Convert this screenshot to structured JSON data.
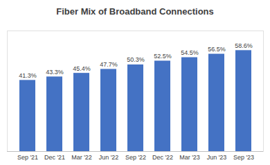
{
  "chart_data": {
    "type": "bar",
    "title": "Fiber Mix of Broadband Connections",
    "categories": [
      "Sep '21",
      "Dec '21",
      "Mar '22",
      "Jun '22",
      "Sep '22",
      "Dec '22",
      "Mar '23",
      "Jun '23",
      "Sep '23"
    ],
    "values": [
      41.3,
      43.3,
      45.4,
      47.7,
      50.3,
      52.5,
      54.5,
      56.5,
      58.6
    ],
    "value_labels": [
      "41.3%",
      "43.3%",
      "45.4%",
      "47.7%",
      "50.3%",
      "52.5%",
      "54.5%",
      "56.5%",
      "58.6%"
    ],
    "color": "#4472c4",
    "ylim": [
      0,
      70
    ],
    "grid": false,
    "data_labels": true,
    "tick_labels": "x"
  }
}
